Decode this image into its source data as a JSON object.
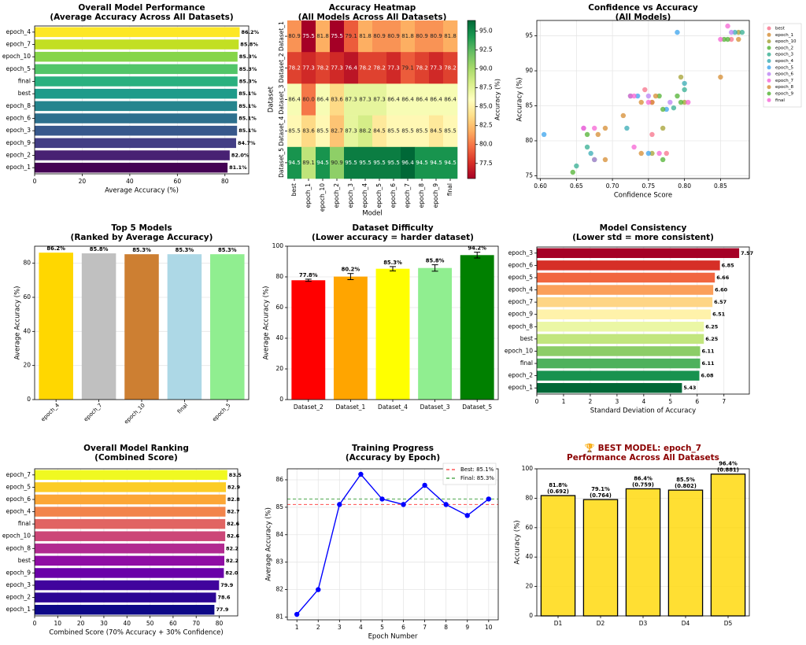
{
  "chart_data": [
    {
      "type": "bar",
      "title": "Overall Model Performance\n(Average Accuracy Across All Datasets)",
      "xlabel": "Average Accuracy (%)",
      "xlim": [
        0,
        90
      ],
      "xticks": [
        0,
        20,
        40,
        60,
        80
      ],
      "orientation": "horizontal",
      "categories": [
        "epoch_4",
        "epoch_7",
        "epoch_10",
        "epoch_5",
        "final",
        "best",
        "epoch_8",
        "epoch_6",
        "epoch_3",
        "epoch_9",
        "epoch_2",
        "epoch_1"
      ],
      "values": [
        86.2,
        85.8,
        85.3,
        85.3,
        85.3,
        85.1,
        85.1,
        85.1,
        85.1,
        84.7,
        82.0,
        81.1
      ],
      "labels": [
        "86.2%",
        "85.8%",
        "85.3%",
        "85.3%",
        "85.3%",
        "85.1%",
        "85.1%",
        "85.1%",
        "85.1%",
        "84.7%",
        "82.0%",
        "81.1%"
      ],
      "colors": [
        "#fde725",
        "#c2df23",
        "#86d549",
        "#52c569",
        "#2ab07f",
        "#1e9b8a",
        "#25858e",
        "#2d708e",
        "#38588c",
        "#433e85",
        "#482173",
        "#440154"
      ]
    },
    {
      "type": "heatmap",
      "title": "Accuracy Heatmap\n(All Models Across All Datasets)",
      "xlabel": "Model",
      "ylabel": "Dataset",
      "colorbar_label": "Accuracy (%)",
      "colorbar_ticks": [
        "77.5",
        "80.0",
        "82.5",
        "85.0",
        "87.5",
        "90.0",
        "92.5",
        "95.0"
      ],
      "vmin": 75.5,
      "vmax": 96.4,
      "x": [
        "best",
        "epoch_1",
        "epoch_10",
        "epoch_2",
        "epoch_3",
        "epoch_4",
        "epoch_5",
        "epoch_6",
        "epoch_7",
        "epoch_8",
        "epoch_9",
        "final"
      ],
      "y": [
        "Dataset_1",
        "Dataset_2",
        "Dataset_3",
        "Dataset_4",
        "Dataset_5"
      ],
      "z": [
        [
          80.9,
          75.5,
          81.8,
          75.5,
          79.1,
          81.8,
          80.9,
          80.9,
          81.8,
          80.9,
          80.9,
          81.8
        ],
        [
          78.2,
          77.3,
          78.2,
          77.3,
          76.4,
          78.2,
          78.2,
          77.3,
          79.1,
          78.2,
          77.3,
          78.2
        ],
        [
          86.4,
          80.0,
          86.4,
          83.6,
          87.3,
          87.3,
          87.3,
          86.4,
          86.4,
          86.4,
          86.4,
          86.4
        ],
        [
          85.5,
          83.6,
          85.5,
          82.7,
          87.3,
          88.2,
          84.5,
          85.5,
          85.5,
          85.5,
          84.5,
          85.5
        ],
        [
          94.5,
          89.1,
          94.5,
          90.9,
          95.5,
          95.5,
          95.5,
          95.5,
          96.4,
          94.5,
          94.5,
          94.5
        ]
      ],
      "z_labels": [
        [
          "80.9",
          "75.5",
          "81.8",
          "75.5",
          "79.1",
          "81.8",
          "80.9",
          "80.9",
          "81.8",
          "80.9",
          "80.9",
          "81.8"
        ],
        [
          "78.2",
          "77.3",
          "78.2",
          "77.3",
          "76.4",
          "78.2",
          "78.2",
          "77.3",
          "79.1",
          "78.2",
          "77.3",
          "78.2"
        ],
        [
          "86.4",
          "80.0",
          "86.4",
          "83.6",
          "87.3",
          "87.3",
          "87.3",
          "86.4",
          "86.4",
          "86.4",
          "86.4",
          "86.4"
        ],
        [
          "85.5",
          "83.6",
          "85.5",
          "82.7",
          "87.3",
          "88.2",
          "84.5",
          "85.5",
          "85.5",
          "85.5",
          "84.5",
          "85.5"
        ],
        [
          "94.5",
          "89.1",
          "94.5",
          "90.9",
          "95.5",
          "95.5",
          "95.5",
          "95.5",
          "96.4",
          "94.5",
          "94.5",
          "94.5"
        ]
      ]
    },
    {
      "type": "scatter",
      "title": "Confidence vs Accuracy\n(All Models)",
      "xlabel": "Confidence Score",
      "ylabel": "Accuracy (%)",
      "xlim": [
        0.595,
        0.89
      ],
      "ylim": [
        74.6,
        97.2
      ],
      "xticks": [
        "0.60",
        "0.65",
        "0.70",
        "0.75",
        "0.80",
        "0.85"
      ],
      "yticks": [
        "75",
        "80",
        "85",
        "90",
        "95"
      ],
      "legend_position": "outside-right",
      "series": [
        {
          "name": "best",
          "color": "#f77189",
          "points": [
            [
              0.745,
              87.3
            ],
            [
              0.775,
              78.2
            ],
            [
              0.755,
              80.9
            ],
            [
              0.755,
              85.5
            ],
            [
              0.865,
              94.5
            ]
          ]
        },
        {
          "name": "epoch_1",
          "color": "#d58c32",
          "points": [
            [
              0.715,
              83.6
            ],
            [
              0.68,
              80.9
            ],
            [
              0.69,
              77.3
            ],
            [
              0.755,
              85.5
            ],
            [
              0.85,
              89.1
            ]
          ]
        },
        {
          "name": "epoch_10",
          "color": "#a4a031",
          "points": [
            [
              0.77,
              81.8
            ],
            [
              0.755,
              78.2
            ],
            [
              0.795,
              89.1
            ],
            [
              0.8,
              85.5
            ],
            [
              0.875,
              95.5
            ]
          ]
        },
        {
          "name": "epoch_2",
          "color": "#50b131",
          "points": [
            [
              0.645,
              75.5
            ],
            [
              0.675,
              77.3
            ],
            [
              0.795,
              85.5
            ],
            [
              0.765,
              86.4
            ],
            [
              0.855,
              94.5
            ]
          ]
        },
        {
          "name": "epoch_3",
          "color": "#34ae91",
          "points": [
            [
              0.665,
              79.1
            ],
            [
              0.65,
              76.4
            ],
            [
              0.785,
              84.7
            ],
            [
              0.8,
              87.3
            ],
            [
              0.88,
              95.5
            ]
          ]
        },
        {
          "name": "epoch_4",
          "color": "#37abb4",
          "points": [
            [
              0.72,
              81.8
            ],
            [
              0.67,
              78.2
            ],
            [
              0.725,
              86.4
            ],
            [
              0.8,
              88.2
            ],
            [
              0.87,
              95.5
            ]
          ]
        },
        {
          "name": "epoch_5",
          "color": "#3ba3ec",
          "points": [
            [
              0.605,
              80.9
            ],
            [
              0.75,
              78.2
            ],
            [
              0.735,
              86.4
            ],
            [
              0.775,
              84.5
            ],
            [
              0.79,
              95.5
            ]
          ]
        },
        {
          "name": "epoch_6",
          "color": "#bb83f4",
          "points": [
            [
              0.66,
              81.8
            ],
            [
              0.675,
              77.3
            ],
            [
              0.75,
              86.4
            ],
            [
              0.78,
              85.5
            ],
            [
              0.865,
              95.5
            ]
          ]
        },
        {
          "name": "epoch_7",
          "color": "#f564d4",
          "points": [
            [
              0.675,
              81.8
            ],
            [
              0.73,
              79.1
            ],
            [
              0.725,
              86.4
            ],
            [
              0.75,
              85.5
            ],
            [
              0.86,
              96.4
            ]
          ]
        },
        {
          "name": "epoch_8",
          "color": "#d58c32",
          "points": [
            [
              0.69,
              81.8
            ],
            [
              0.74,
              78.2
            ],
            [
              0.76,
              86.4
            ],
            [
              0.74,
              85.5
            ],
            [
              0.875,
              94.5
            ]
          ]
        },
        {
          "name": "epoch_9",
          "color": "#50b131",
          "points": [
            [
              0.665,
              80.9
            ],
            [
              0.77,
              77.3
            ],
            [
              0.79,
              86.4
            ],
            [
              0.77,
              84.5
            ],
            [
              0.86,
              94.5
            ]
          ]
        },
        {
          "name": "final",
          "color": "#f564d4",
          "points": [
            [
              0.66,
              81.8
            ],
            [
              0.765,
              78.2
            ],
            [
              0.73,
              86.4
            ],
            [
              0.805,
              85.5
            ],
            [
              0.85,
              94.5
            ]
          ]
        }
      ]
    },
    {
      "type": "bar",
      "title": "Top 5 Models\n(Ranked by Average Accuracy)",
      "ylabel": "Average Accuracy (%)",
      "ylim": [
        0,
        90
      ],
      "yticks": [
        0,
        20,
        40,
        60,
        80
      ],
      "categories": [
        "epoch_4",
        "epoch_7",
        "epoch_10",
        "final",
        "epoch_5"
      ],
      "values": [
        86.2,
        85.8,
        85.3,
        85.3,
        85.3
      ],
      "labels": [
        "86.2%",
        "85.8%",
        "85.3%",
        "85.3%",
        "85.3%"
      ],
      "colors": [
        "#ffd700",
        "#c0c0c0",
        "#cd7f32",
        "#add8e6",
        "#90ee90"
      ]
    },
    {
      "type": "bar",
      "title": "Dataset Difficulty\n(Lower accuracy = harder dataset)",
      "ylabel": "Average Accuracy (%)",
      "ylim": [
        0,
        100
      ],
      "yticks": [
        0,
        20,
        40,
        60,
        80,
        100
      ],
      "categories": [
        "Dataset_2",
        "Dataset_1",
        "Dataset_4",
        "Dataset_3",
        "Dataset_5"
      ],
      "values": [
        77.8,
        80.2,
        85.3,
        85.8,
        94.2
      ],
      "errors": [
        0.7,
        2.0,
        1.4,
        2.1,
        1.9
      ],
      "labels": [
        "77.8%",
        "80.2%",
        "85.3%",
        "85.8%",
        "94.2%"
      ],
      "colors": [
        "#ff0000",
        "#ffa500",
        "#ffff00",
        "#90ee90",
        "#008000"
      ]
    },
    {
      "type": "bar",
      "title": "Model Consistency\n(Lower std = more consistent)",
      "xlabel": "Standard Deviation of Accuracy",
      "xlim": [
        0,
        7.95
      ],
      "xticks": [
        0,
        1,
        2,
        3,
        4,
        5,
        6,
        7
      ],
      "orientation": "horizontal",
      "categories": [
        "epoch_3",
        "epoch_6",
        "epoch_5",
        "epoch_4",
        "epoch_7",
        "epoch_9",
        "epoch_8",
        "best",
        "epoch_10",
        "final",
        "epoch_2",
        "epoch_1"
      ],
      "values": [
        7.57,
        6.85,
        6.66,
        6.6,
        6.57,
        6.51,
        6.25,
        6.25,
        6.11,
        6.11,
        6.08,
        5.43
      ],
      "labels": [
        "7.57",
        "6.85",
        "6.66",
        "6.60",
        "6.57",
        "6.51",
        "6.25",
        "6.25",
        "6.11",
        "6.11",
        "6.08",
        "5.43"
      ],
      "colors": [
        "#a50026",
        "#d62f27",
        "#f16640",
        "#fba05b",
        "#fed585",
        "#fff2aa",
        "#ebf7a5",
        "#c2e67e",
        "#8ccd67",
        "#4eb15d",
        "#18924f",
        "#006837"
      ]
    },
    {
      "type": "bar",
      "title": "Overall Model Ranking\n(Combined Score)",
      "xlabel": "Combined Score (70% Accuracy + 30% Confidence)",
      "xlim": [
        0,
        88
      ],
      "xticks": [
        0,
        10,
        20,
        30,
        40,
        50,
        60,
        70,
        80
      ],
      "orientation": "horizontal",
      "categories": [
        "epoch_7",
        "epoch_5",
        "epoch_6",
        "epoch_4",
        "final",
        "epoch_10",
        "epoch_8",
        "best",
        "epoch_9",
        "epoch_3",
        "epoch_2",
        "epoch_1"
      ],
      "values": [
        83.5,
        82.9,
        82.8,
        82.7,
        82.6,
        82.6,
        82.2,
        82.2,
        82.0,
        79.9,
        78.6,
        77.9
      ],
      "labels": [
        "83.5",
        "82.9",
        "82.8",
        "82.7",
        "82.6",
        "82.6",
        "82.2",
        "82.2",
        "82.0",
        "79.9",
        "78.6",
        "77.9"
      ],
      "colors": [
        "#f0f921",
        "#fccd25",
        "#fca636",
        "#f2844b",
        "#e16462",
        "#cc4778",
        "#b12a90",
        "#8f0da4",
        "#6a00a8",
        "#41049d",
        "#2c0594",
        "#0d0887"
      ]
    },
    {
      "type": "line",
      "title": "Training Progress\n(Accuracy by Epoch)",
      "xlabel": "Epoch Number",
      "ylabel": "Average Accuracy (%)",
      "xlim": [
        0.55,
        10.45
      ],
      "ylim": [
        80.9,
        86.4
      ],
      "xticks": [
        1,
        2,
        3,
        4,
        5,
        6,
        7,
        8,
        9,
        10
      ],
      "yticks": [
        81,
        82,
        83,
        84,
        85,
        86
      ],
      "x": [
        1,
        2,
        3,
        4,
        5,
        6,
        7,
        8,
        9,
        10
      ],
      "series": [
        {
          "values": [
            81.1,
            82.0,
            85.1,
            86.2,
            85.3,
            85.1,
            85.8,
            85.1,
            84.7,
            85.3
          ],
          "color": "#0000ff"
        }
      ],
      "hlines": [
        {
          "name": "Best: 85.1%",
          "value": 85.1,
          "color": "#ff0000"
        },
        {
          "name": "Final: 85.3%",
          "value": 85.3,
          "color": "#008000"
        }
      ],
      "legend_position": "top-right"
    },
    {
      "type": "bar",
      "title": "🏆 BEST MODEL: epoch_7\nPerformance Across All Datasets",
      "title_color": "#8b0000",
      "ylabel": "Accuracy (%)",
      "ylim": [
        0,
        100
      ],
      "yticks": [
        0,
        20,
        40,
        60,
        80,
        100
      ],
      "categories": [
        "D1",
        "D2",
        "D3",
        "D4",
        "D5"
      ],
      "values": [
        81.8,
        79.1,
        86.4,
        85.5,
        96.4
      ],
      "labels": [
        "81.8%\n(0.692)",
        "79.1%\n(0.764)",
        "86.4%\n(0.759)",
        "85.5%\n(0.802)",
        "96.4%\n(0.881)"
      ],
      "colors": [
        "#ffd700",
        "#ffd700",
        "#ffd700",
        "#ffd700",
        "#ffd700"
      ]
    }
  ]
}
